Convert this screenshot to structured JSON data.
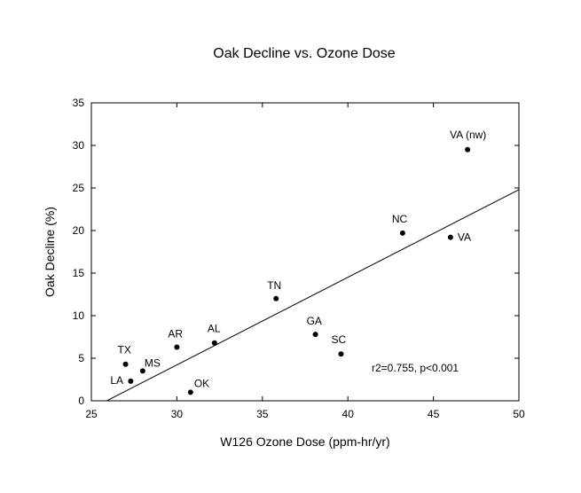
{
  "chart_data": {
    "type": "scatter",
    "title": "Oak Decline vs. Ozone Dose",
    "xlabel": "W126 Ozone Dose (ppm-hr/yr)",
    "ylabel": "Oak Decline (%)",
    "xlim": [
      25,
      50
    ],
    "ylim": [
      0,
      35
    ],
    "xticks": [
      25,
      30,
      35,
      40,
      45,
      50
    ],
    "yticks": [
      0,
      5,
      10,
      15,
      20,
      25,
      30,
      35
    ],
    "grid": false,
    "points": [
      {
        "label": "VA (nw)",
        "x": 47.0,
        "y": 29.5
      },
      {
        "label": "NC",
        "x": 43.2,
        "y": 19.7
      },
      {
        "label": "VA",
        "x": 46.0,
        "y": 19.2
      },
      {
        "label": "TN",
        "x": 35.8,
        "y": 12.0
      },
      {
        "label": "GA",
        "x": 38.1,
        "y": 7.8
      },
      {
        "label": "SC",
        "x": 39.6,
        "y": 5.5
      },
      {
        "label": "AL",
        "x": 32.2,
        "y": 6.8
      },
      {
        "label": "AR",
        "x": 30.0,
        "y": 6.3
      },
      {
        "label": "TX",
        "x": 27.0,
        "y": 4.3
      },
      {
        "label": "MS",
        "x": 28.0,
        "y": 3.5
      },
      {
        "label": "LA",
        "x": 27.3,
        "y": 2.3
      },
      {
        "label": "OK",
        "x": 30.8,
        "y": 1.0
      }
    ],
    "regression_line": {
      "x": [
        25.9,
        50.0
      ],
      "y": [
        0.0,
        24.8
      ]
    },
    "annotation": "r2=0.755, p<0.001"
  }
}
